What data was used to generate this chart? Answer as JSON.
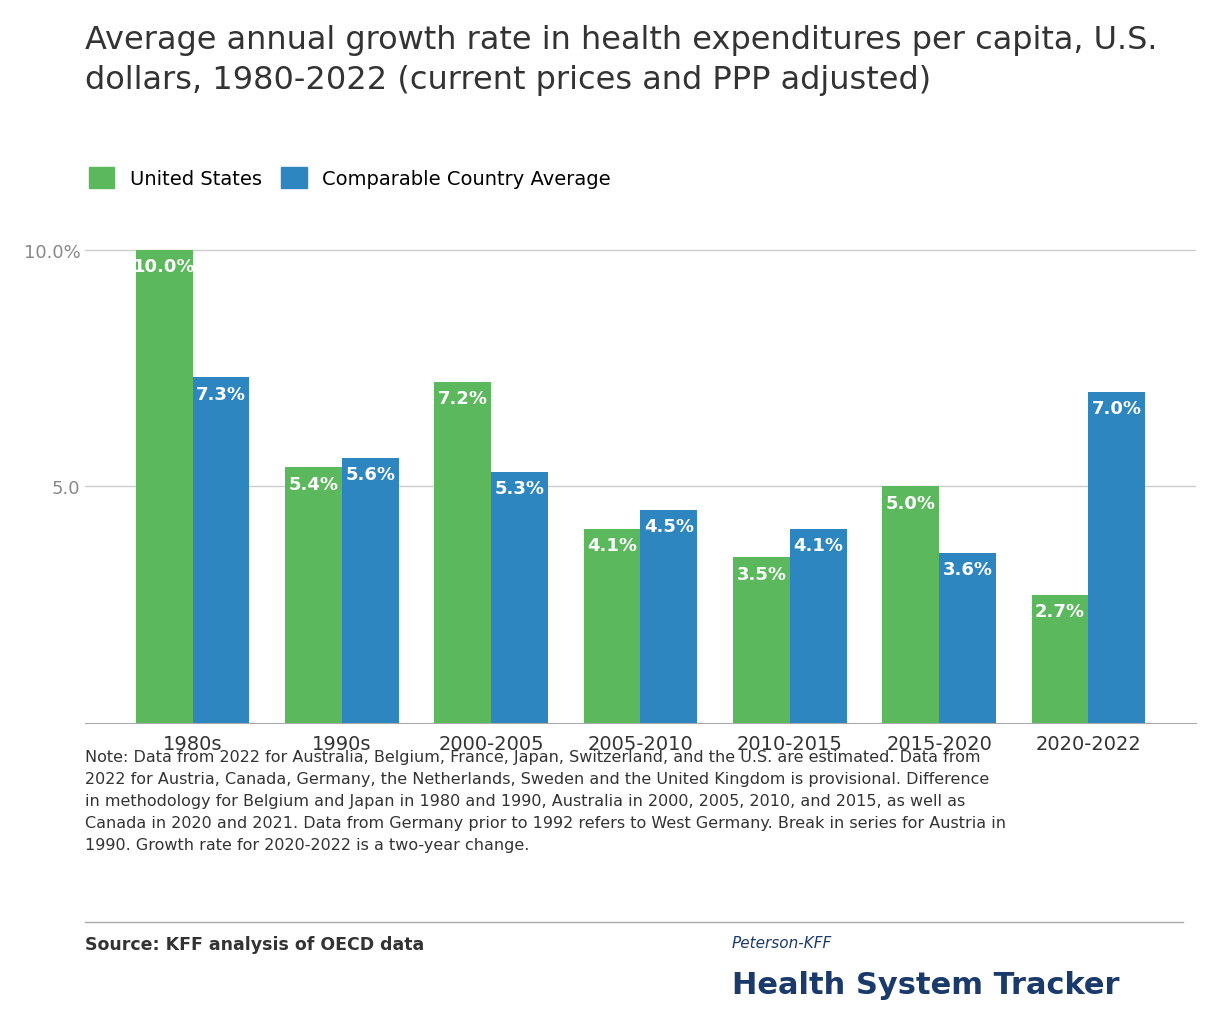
{
  "title": "Average annual growth rate in health expenditures per capita, U.S.\ndollars, 1980-2022 (current prices and PPP adjusted)",
  "categories": [
    "1980s",
    "1990s",
    "2000-2005",
    "2005-2010",
    "2010-2015",
    "2015-2020",
    "2020-2022"
  ],
  "us_values": [
    10.0,
    5.4,
    7.2,
    4.1,
    3.5,
    5.0,
    2.7
  ],
  "comp_values": [
    7.3,
    5.6,
    5.3,
    4.5,
    4.1,
    3.6,
    7.0
  ],
  "us_color": "#5cb85c",
  "comp_color": "#2e86c1",
  "us_label": "United States",
  "comp_label": "Comparable Country Average",
  "ylim": [
    0,
    11.2
  ],
  "bar_width": 0.38,
  "title_fontsize": 23,
  "label_fontsize": 13,
  "tick_fontsize": 13,
  "note_text": "Note: Data from 2022 for Australia, Belgium, France, Japan, Switzerland, and the U.S. are estimated. Data from\n2022 for Austria, Canada, Germany, the Netherlands, Sweden and the United Kingdom is provisional. Difference\nin methodology for Belgium and Japan in 1980 and 1990, Australia in 2000, 2005, 2010, and 2015, as well as\nCanada in 2020 and 2021. Data from Germany prior to 1992 refers to West Germany. Break in series for Austria in\n1990. Growth rate for 2020-2022 is a two-year change.",
  "source_text": "Source: KFF analysis of OECD data",
  "peterson_text": "Peterson-KFF",
  "tracker_text": "Health System Tracker",
  "background_color": "#ffffff",
  "grid_color": "#cccccc",
  "text_color": "#333333",
  "navy_color": "#1a3a6b",
  "axis_color": "#aaaaaa"
}
